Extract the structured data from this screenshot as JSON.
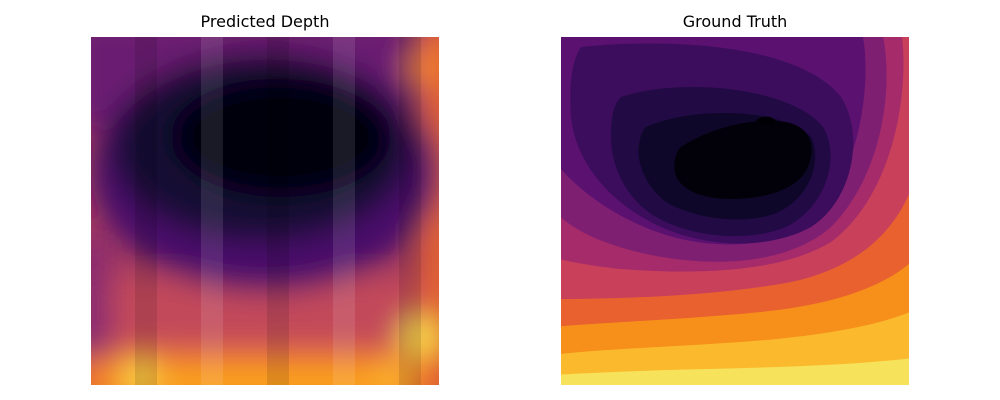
{
  "panels": [
    {
      "title": "Predicted Depth",
      "colormap": "inferno",
      "grid": false,
      "axes": false
    },
    {
      "title": "Ground Truth",
      "colormap": "inferno",
      "grid": false,
      "axes": false
    }
  ],
  "colors": {
    "background": "#ffffff",
    "title_text": "#000000"
  }
}
